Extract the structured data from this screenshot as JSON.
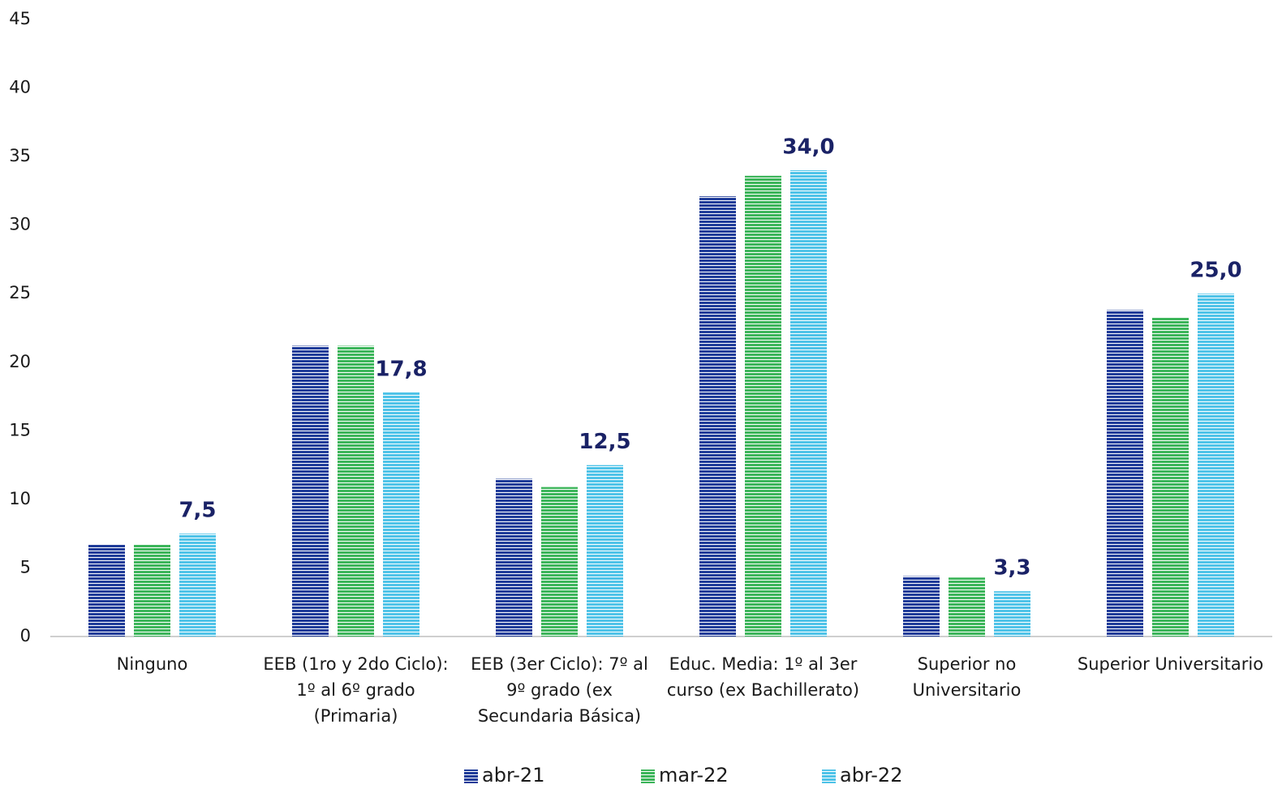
{
  "chart_data": {
    "type": "bar",
    "categories": [
      "Ninguno",
      "EEB (1ro y 2do Ciclo): 1º al 6º grado (Primaria)",
      "EEB (3er Ciclo): 7º al 9º grado (ex Secundaria Básica)",
      "Educ. Media: 1º al 3er curso (ex Bachillerato)",
      "Superior no Universitario",
      "Superior Universitario"
    ],
    "series": [
      {
        "name": "abr-21",
        "color": "#1f3c99",
        "values": [
          6.7,
          21.2,
          11.5,
          32.1,
          4.4,
          23.8
        ]
      },
      {
        "name": "mar-22",
        "color": "#3cb55a",
        "values": [
          6.7,
          21.2,
          10.9,
          33.6,
          4.3,
          23.3
        ]
      },
      {
        "name": "abr-22",
        "color": "#4fc3e8",
        "values": [
          7.5,
          17.8,
          12.5,
          34.0,
          3.3,
          25.0
        ],
        "value_labels": [
          "7,5",
          "17,8",
          "12,5",
          "34,0",
          "3,3",
          "25,0"
        ]
      }
    ],
    "ylim": [
      0,
      45
    ],
    "yticks": [
      0,
      5,
      10,
      15,
      20,
      25,
      30,
      35,
      40,
      45
    ],
    "grid": false,
    "legend": "bottom"
  }
}
